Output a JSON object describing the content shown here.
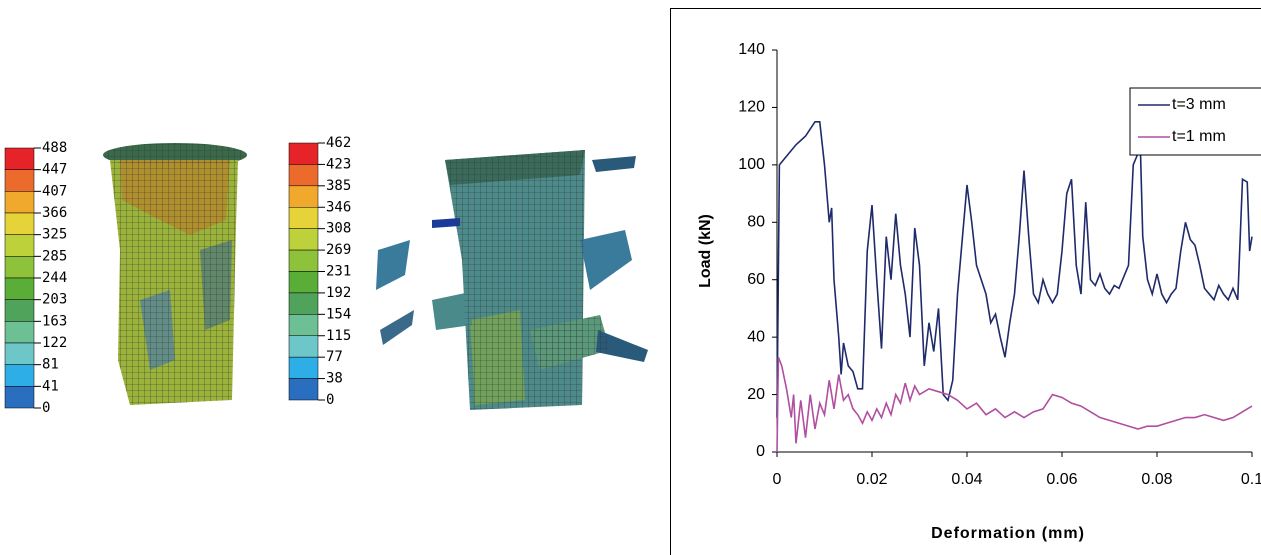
{
  "contour_legends": [
    {
      "labels": [
        488,
        447,
        407,
        366,
        325,
        285,
        244,
        203,
        163,
        122,
        81,
        41,
        0
      ],
      "colors": [
        "#e62328",
        "#ec6a2c",
        "#f1a92d",
        "#e6d33a",
        "#bcd13a",
        "#8ec23b",
        "#5aae37",
        "#4fa35a",
        "#6cc094",
        "#6dc7c9",
        "#2eaee6",
        "#2a6ec0",
        "#1b3b9b"
      ]
    },
    {
      "labels": [
        462,
        423,
        385,
        346,
        308,
        269,
        231,
        192,
        154,
        115,
        77,
        38,
        0
      ],
      "colors": [
        "#e62328",
        "#ec6a2c",
        "#f1a92d",
        "#e6d33a",
        "#bcd13a",
        "#8ec23b",
        "#5aae37",
        "#4fa35a",
        "#6cc094",
        "#6dc7c9",
        "#2eaee6",
        "#2a6ec0",
        "#1b3b9b"
      ]
    }
  ],
  "chart_data": {
    "type": "line",
    "x_label": "Deformation (mm)",
    "y_label": "Load (kN)",
    "xlim": [
      0,
      0.1
    ],
    "xticks": [
      0,
      0.02,
      0.04,
      0.06,
      0.08,
      0.1
    ],
    "ylim": [
      0,
      140
    ],
    "yticks": [
      0,
      20,
      40,
      60,
      80,
      100,
      120,
      140
    ],
    "grid": false,
    "legend": "upper right",
    "series": [
      {
        "name": "t=3 mm",
        "color": "#1f2a6b",
        "x": [
          0,
          0.0005,
          0.002,
          0.004,
          0.006,
          0.008,
          0.009,
          0.01,
          0.011,
          0.0115,
          0.012,
          0.013,
          0.0135,
          0.014,
          0.015,
          0.016,
          0.017,
          0.018,
          0.019,
          0.02,
          0.021,
          0.022,
          0.023,
          0.024,
          0.025,
          0.026,
          0.027,
          0.028,
          0.029,
          0.03,
          0.031,
          0.032,
          0.033,
          0.034,
          0.035,
          0.036,
          0.037,
          0.038,
          0.04,
          0.041,
          0.042,
          0.044,
          0.045,
          0.046,
          0.047,
          0.048,
          0.049,
          0.05,
          0.051,
          0.052,
          0.053,
          0.054,
          0.055,
          0.056,
          0.057,
          0.058,
          0.059,
          0.06,
          0.061,
          0.062,
          0.063,
          0.064,
          0.065,
          0.066,
          0.067,
          0.068,
          0.069,
          0.07,
          0.071,
          0.072,
          0.074,
          0.075,
          0.0765,
          0.077,
          0.078,
          0.079,
          0.08,
          0.081,
          0.082,
          0.083,
          0.084,
          0.085,
          0.086,
          0.087,
          0.088,
          0.089,
          0.09,
          0.091,
          0.092,
          0.093,
          0.094,
          0.095,
          0.096,
          0.097,
          0.098,
          0.099,
          0.0995,
          0.1
        ],
        "values": [
          12,
          100,
          103,
          107,
          110,
          115,
          115,
          100,
          80,
          85,
          60,
          40,
          27,
          38,
          30,
          28,
          22,
          22,
          70,
          86,
          60,
          36,
          75,
          60,
          83,
          65,
          55,
          40,
          78,
          65,
          30,
          45,
          35,
          50,
          20,
          18,
          25,
          55,
          93,
          80,
          65,
          55,
          45,
          48,
          40,
          33,
          45,
          55,
          75,
          98,
          75,
          55,
          52,
          60,
          55,
          52,
          55,
          70,
          90,
          95,
          65,
          55,
          87,
          60,
          58,
          62,
          57,
          55,
          58,
          57,
          65,
          100,
          106,
          75,
          60,
          55,
          62,
          55,
          52,
          55,
          57,
          70,
          80,
          74,
          72,
          65,
          57,
          55,
          53,
          58,
          55,
          53,
          57,
          53,
          95,
          94,
          70,
          75
        ]
      },
      {
        "name": "t=1 mm",
        "color": "#b04fa0",
        "x": [
          0,
          0.0003,
          0.001,
          0.002,
          0.003,
          0.0035,
          0.004,
          0.005,
          0.006,
          0.007,
          0.008,
          0.009,
          0.01,
          0.011,
          0.012,
          0.013,
          0.014,
          0.015,
          0.016,
          0.017,
          0.018,
          0.019,
          0.02,
          0.021,
          0.022,
          0.023,
          0.024,
          0.025,
          0.026,
          0.027,
          0.028,
          0.029,
          0.03,
          0.032,
          0.034,
          0.036,
          0.038,
          0.04,
          0.042,
          0.044,
          0.046,
          0.048,
          0.05,
          0.052,
          0.054,
          0.056,
          0.058,
          0.06,
          0.062,
          0.064,
          0.066,
          0.068,
          0.07,
          0.072,
          0.074,
          0.076,
          0.078,
          0.08,
          0.082,
          0.084,
          0.086,
          0.088,
          0.09,
          0.092,
          0.094,
          0.096,
          0.098,
          0.1
        ],
        "values": [
          0,
          33,
          30,
          22,
          12,
          20,
          3,
          18,
          5,
          20,
          8,
          17,
          13,
          25,
          15,
          27,
          18,
          20,
          15,
          13,
          10,
          14,
          11,
          15,
          12,
          17,
          13,
          20,
          17,
          24,
          18,
          23,
          20,
          22,
          21,
          20,
          18,
          15,
          17,
          13,
          15,
          12,
          14,
          12,
          14,
          15,
          20,
          19,
          17,
          16,
          14,
          12,
          11,
          10,
          9,
          8,
          9,
          9,
          10,
          11,
          12,
          12,
          13,
          12,
          11,
          12,
          14,
          16
        ]
      }
    ]
  }
}
